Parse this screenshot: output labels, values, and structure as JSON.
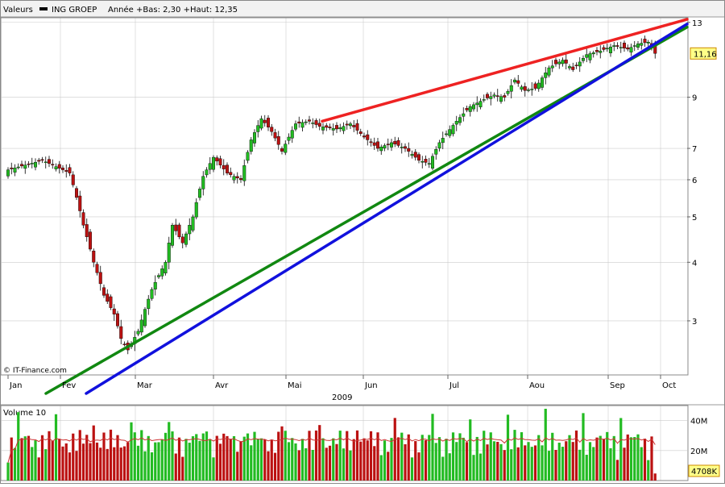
{
  "header": {
    "label": "Valeurs",
    "symbol": "ING GROEP",
    "period_info": "Année +Bas: 2,30 +Haut: 12,35"
  },
  "watermark": "© IT-Finance.com",
  "last_price_badge": "11,16",
  "volume_panel": {
    "title": "Volume 10",
    "last_volume_badge": "4708K"
  },
  "colors": {
    "up": "#22bb22",
    "down": "#bb1111",
    "resistance": "#ee2222",
    "support_green": "#118811",
    "support_blue": "#1111dd",
    "volume_ma": "#cc3333",
    "grid": "#cccccc",
    "badge_bg": "#ffff88",
    "badge_border": "#cc8800"
  },
  "chart_data": [
    {
      "type": "candlestick",
      "title": "ING GROEP",
      "year_label": "2009",
      "x_ticks": [
        "Jan",
        "Fev",
        "Mar",
        "Avr",
        "Mai",
        "Jun",
        "Jul",
        "Aou",
        "Sep",
        "Oct"
      ],
      "y_ticks": [
        3,
        4,
        5,
        6,
        7,
        9,
        13
      ],
      "y_scale": "log",
      "ylim": [
        2.3,
        13.3
      ],
      "year_range": {
        "low": 2.3,
        "high": 12.35
      },
      "last_close": 11.16,
      "anchors": [
        [
          0,
          6.3
        ],
        [
          10,
          6.6
        ],
        [
          18,
          6.2
        ],
        [
          22,
          4.8
        ],
        [
          25,
          4.0
        ],
        [
          28,
          3.4
        ],
        [
          31,
          3.1
        ],
        [
          33,
          2.75
        ],
        [
          35,
          2.6
        ],
        [
          38,
          2.85
        ],
        [
          42,
          3.5
        ],
        [
          46,
          4.0
        ],
        [
          48,
          4.8
        ],
        [
          51,
          4.4
        ],
        [
          54,
          5.0
        ],
        [
          57,
          6.1
        ],
        [
          60,
          6.7
        ],
        [
          64,
          6.2
        ],
        [
          68,
          6.0
        ],
        [
          71,
          7.3
        ],
        [
          74,
          8.1
        ],
        [
          77,
          7.6
        ],
        [
          80,
          6.9
        ],
        [
          84,
          7.9
        ],
        [
          88,
          8.0
        ],
        [
          91,
          7.8
        ],
        [
          96,
          7.7
        ],
        [
          100,
          7.9
        ],
        [
          104,
          7.4
        ],
        [
          108,
          7.0
        ],
        [
          112,
          7.2
        ],
        [
          116,
          7.0
        ],
        [
          120,
          6.6
        ],
        [
          123,
          6.5
        ],
        [
          126,
          7.2
        ],
        [
          131,
          8.0
        ],
        [
          135,
          8.6
        ],
        [
          139,
          8.9
        ],
        [
          142,
          9.1
        ],
        [
          145,
          9.0
        ],
        [
          148,
          9.8
        ],
        [
          151,
          9.3
        ],
        [
          154,
          9.4
        ],
        [
          158,
          10.4
        ],
        [
          162,
          10.8
        ],
        [
          165,
          10.3
        ],
        [
          169,
          11.1
        ],
        [
          173,
          11.3
        ],
        [
          177,
          11.6
        ],
        [
          181,
          11.4
        ],
        [
          184,
          11.7
        ],
        [
          187,
          11.8
        ],
        [
          189,
          11.16
        ]
      ],
      "trendlines": [
        {
          "name": "resistance",
          "from": [
            "Mai",
            8.0
          ],
          "to": [
            "Oct",
            13.2
          ]
        },
        {
          "name": "support-green",
          "from": [
            "Jan",
            2.1
          ],
          "to": [
            "Oct",
            12.7
          ]
        },
        {
          "name": "support-blue",
          "from": [
            "Fev",
            2.1
          ],
          "to": [
            "Oct",
            12.9
          ]
        }
      ]
    },
    {
      "type": "bar",
      "title": "Volume 10",
      "y_ticks": [
        "20M",
        "40M"
      ],
      "tick_values": [
        20,
        40
      ],
      "ylim": [
        0,
        50
      ],
      "unit": "M",
      "last_value": 4.708
    }
  ]
}
